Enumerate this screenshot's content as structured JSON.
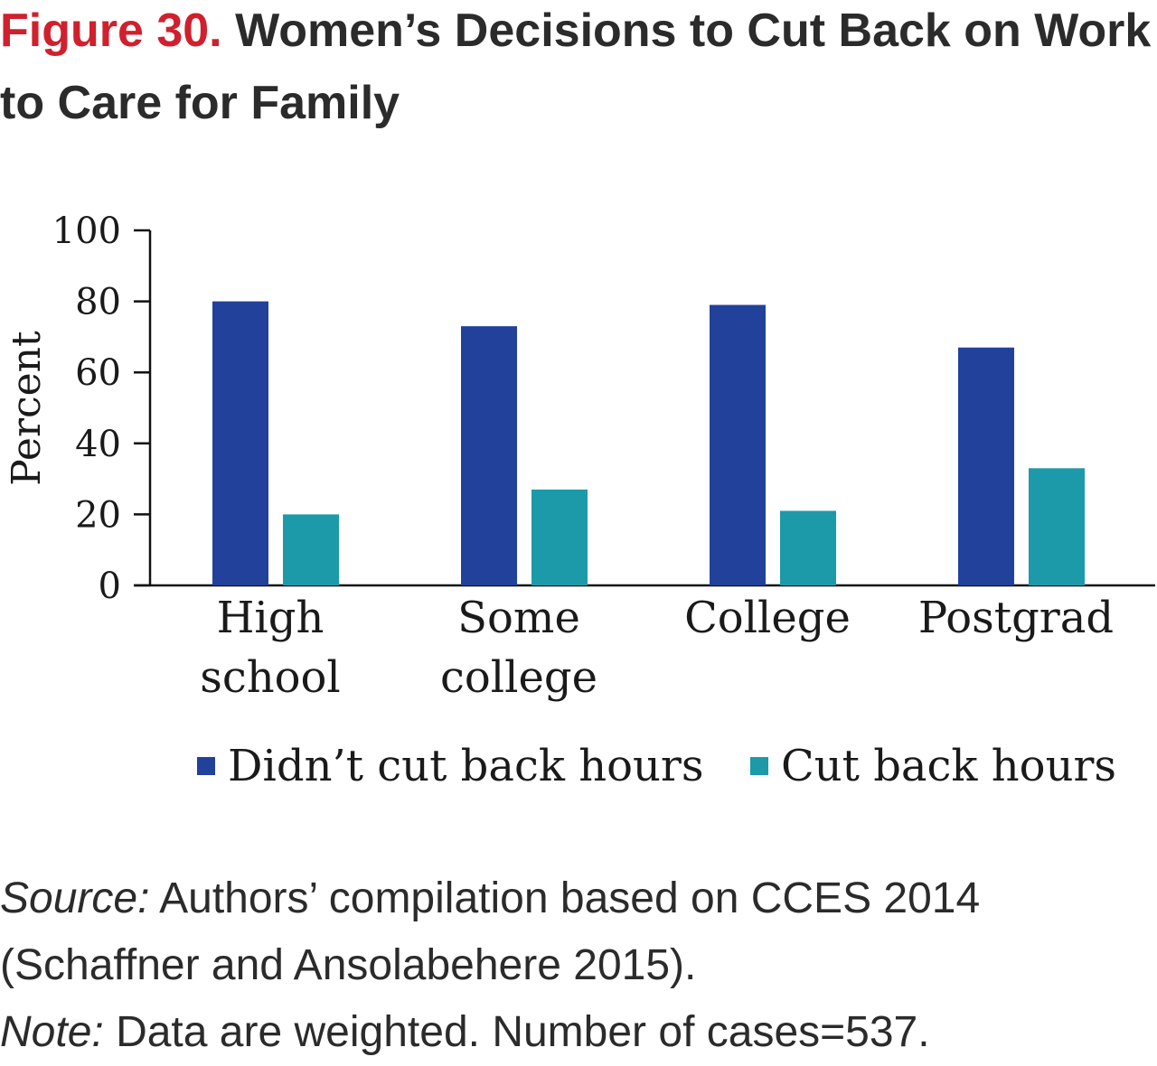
{
  "figure": {
    "label": "Figure 30.",
    "title": "Women’s Decisions to Cut Back on Work to Care for Family"
  },
  "chart_data": {
    "type": "bar",
    "categories": [
      [
        "High",
        "school"
      ],
      [
        "Some",
        "college"
      ],
      [
        "College"
      ],
      [
        "Postgrad"
      ]
    ],
    "series": [
      {
        "name": "Didn’t cut back hours",
        "color": "#22419a",
        "values": [
          80,
          73,
          79,
          67
        ]
      },
      {
        "name": "Cut back hours",
        "color": "#1c9aa9",
        "values": [
          20,
          27,
          21,
          33
        ]
      }
    ],
    "ylabel": "Percent",
    "ylim": [
      0,
      100
    ],
    "yticks": [
      0,
      20,
      40,
      60,
      80,
      100
    ],
    "grid": false,
    "legend_position": "bottom"
  },
  "notes": {
    "source_label": "Source:",
    "source_text": " Authors’ compilation based on CCES 2014 (Schaffner and Ansolabehere 2015).",
    "note_label": "Note:",
    "note_text": " Data are weighted. Number of cases=537."
  }
}
